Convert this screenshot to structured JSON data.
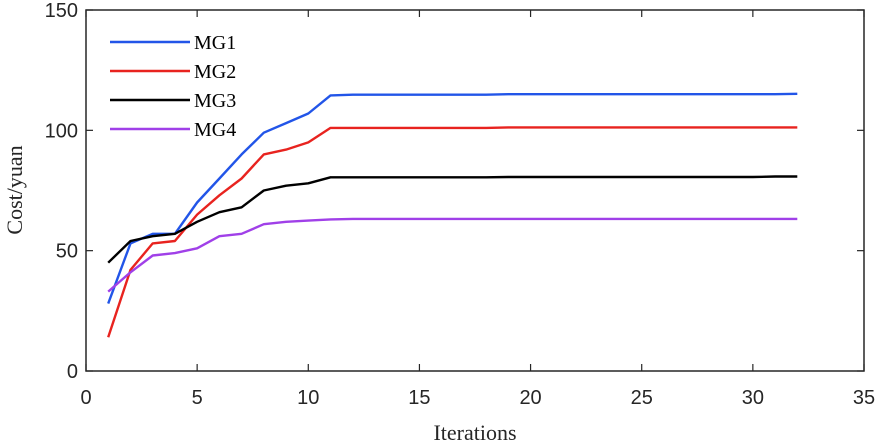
{
  "chart_data": {
    "type": "line",
    "title": "",
    "xlabel": "Iterations",
    "ylabel": "Cost/yuan",
    "xlim": [
      0,
      35
    ],
    "ylim": [
      0,
      150
    ],
    "xticks": [
      0,
      5,
      10,
      15,
      20,
      25,
      30,
      35
    ],
    "yticks": [
      0,
      50,
      100,
      150
    ],
    "grid": false,
    "legend_position": "top-left",
    "x": [
      1,
      2,
      3,
      4,
      5,
      6,
      7,
      8,
      9,
      10,
      11,
      12,
      13,
      14,
      15,
      16,
      17,
      18,
      19,
      20,
      21,
      22,
      23,
      24,
      25,
      26,
      27,
      28,
      29,
      30,
      31,
      32
    ],
    "series": [
      {
        "name": "MG1",
        "color": "#2255e8",
        "values": [
          28,
          53,
          57,
          57,
          70,
          80,
          90,
          99,
          103,
          107,
          114.5,
          114.8,
          114.8,
          114.8,
          114.8,
          114.8,
          114.8,
          114.8,
          115,
          115,
          115,
          115,
          115,
          115,
          115,
          115,
          115,
          115,
          115,
          115,
          115,
          115.2
        ]
      },
      {
        "name": "MG2",
        "color": "#e8231f",
        "values": [
          14,
          42,
          53,
          54,
          65,
          73,
          80,
          90,
          92,
          95,
          101,
          101,
          101,
          101,
          101,
          101,
          101,
          101,
          101.2,
          101.2,
          101.2,
          101.2,
          101.2,
          101.2,
          101.2,
          101.2,
          101.2,
          101.2,
          101.2,
          101.2,
          101.2,
          101.2
        ]
      },
      {
        "name": "MG3",
        "color": "#000000",
        "values": [
          45,
          54,
          56,
          57,
          62,
          66,
          68,
          75,
          77,
          78,
          80.5,
          80.5,
          80.5,
          80.5,
          80.5,
          80.5,
          80.5,
          80.5,
          80.6,
          80.6,
          80.6,
          80.6,
          80.6,
          80.6,
          80.6,
          80.6,
          80.6,
          80.6,
          80.6,
          80.6,
          80.8,
          80.8
        ]
      },
      {
        "name": "MG4",
        "color": "#a040e8",
        "values": [
          33,
          41,
          48,
          49,
          51,
          56,
          57,
          61,
          62,
          62.5,
          63,
          63.2,
          63.2,
          63.2,
          63.2,
          63.2,
          63.2,
          63.2,
          63.2,
          63.2,
          63.2,
          63.2,
          63.2,
          63.2,
          63.2,
          63.2,
          63.2,
          63.2,
          63.2,
          63.2,
          63.2,
          63.2
        ]
      }
    ]
  }
}
